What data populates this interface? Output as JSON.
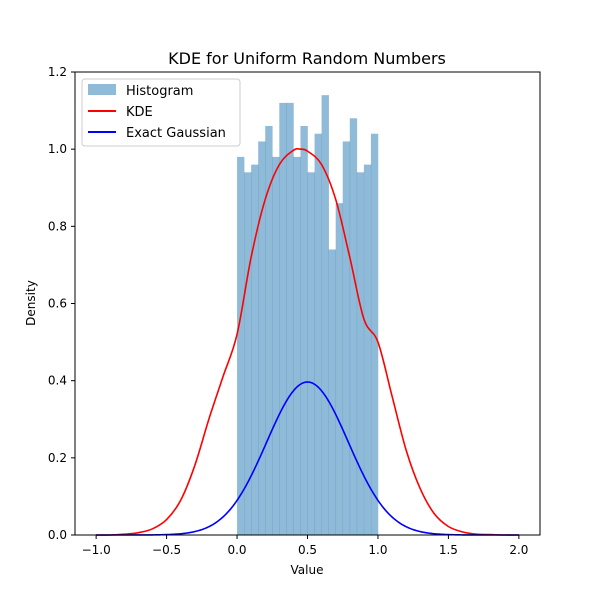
{
  "chart_data": {
    "type": "histogram+line",
    "title": "KDE for Uniform Random Numbers",
    "xlabel": "Value",
    "ylabel": "Density",
    "xlim": [
      -1.15,
      2.15
    ],
    "ylim": [
      0,
      1.2
    ],
    "x_ticks": [
      -1.0,
      -0.5,
      0.0,
      0.5,
      1.0,
      1.5,
      2.0
    ],
    "x_tick_labels": [
      "−1.0",
      "−0.5",
      "0.0",
      "0.5",
      "1.0",
      "1.5",
      "2.0"
    ],
    "y_ticks": [
      0.0,
      0.2,
      0.4,
      0.6,
      0.8,
      1.0,
      1.2
    ],
    "y_tick_labels": [
      "0.0",
      "0.2",
      "0.4",
      "0.6",
      "0.8",
      "1.0",
      "1.2"
    ],
    "legend_position": "top-left",
    "histogram": {
      "name": "Histogram",
      "color": "#1f77b4",
      "opacity": 0.5,
      "bin_start": 0.0,
      "bin_width": 0.05,
      "values": [
        0.98,
        0.94,
        0.96,
        1.02,
        1.06,
        0.98,
        1.12,
        1.12,
        0.98,
        1.06,
        0.94,
        1.04,
        1.14,
        0.74,
        0.86,
        1.02,
        1.08,
        0.94,
        0.96,
        1.04
      ]
    },
    "series": [
      {
        "name": "KDE",
        "color": "#ff0000",
        "x": [
          -1.0,
          -0.9,
          -0.8,
          -0.7,
          -0.6,
          -0.5,
          -0.4,
          -0.3,
          -0.2,
          -0.1,
          0.0,
          0.1,
          0.2,
          0.3,
          0.4,
          0.45,
          0.5,
          0.6,
          0.7,
          0.8,
          0.9,
          1.0,
          1.1,
          1.2,
          1.3,
          1.4,
          1.5,
          1.6,
          1.7,
          1.8,
          1.9,
          2.0
        ],
        "values": [
          0.0,
          0.0,
          0.002,
          0.006,
          0.016,
          0.04,
          0.09,
          0.18,
          0.3,
          0.41,
          0.52,
          0.72,
          0.87,
          0.96,
          0.997,
          1.0,
          0.995,
          0.96,
          0.87,
          0.72,
          0.56,
          0.5,
          0.36,
          0.22,
          0.12,
          0.055,
          0.022,
          0.008,
          0.002,
          0.001,
          0.0,
          0.0
        ]
      },
      {
        "name": "Exact Gaussian",
        "color": "#0000ff",
        "gaussian": {
          "mean": 0.5,
          "std": 0.29,
          "scale": 0.115
        },
        "x_range": [
          -1.0,
          2.0
        ]
      }
    ]
  }
}
